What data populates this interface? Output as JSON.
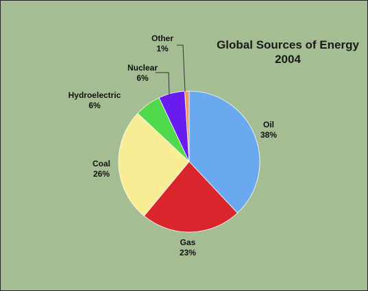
{
  "chart_data": {
    "type": "pie",
    "title": "Global Sources of Energy",
    "subtitle": "2004",
    "categories": [
      "Oil",
      "Gas",
      "Coal",
      "Hydroelectric",
      "Nuclear",
      "Other"
    ],
    "values": [
      38,
      23,
      26,
      6,
      6,
      1
    ],
    "value_labels": [
      "38%",
      "23%",
      "26%",
      "6%",
      "6%",
      "1%"
    ],
    "colors": [
      "#6aa8f0",
      "#d9262c",
      "#f8ec94",
      "#4fd94b",
      "#6a1cf0",
      "#f29a63"
    ],
    "start": "12 o'clock",
    "direction": "clockwise",
    "legend": "none (slice labels)"
  }
}
